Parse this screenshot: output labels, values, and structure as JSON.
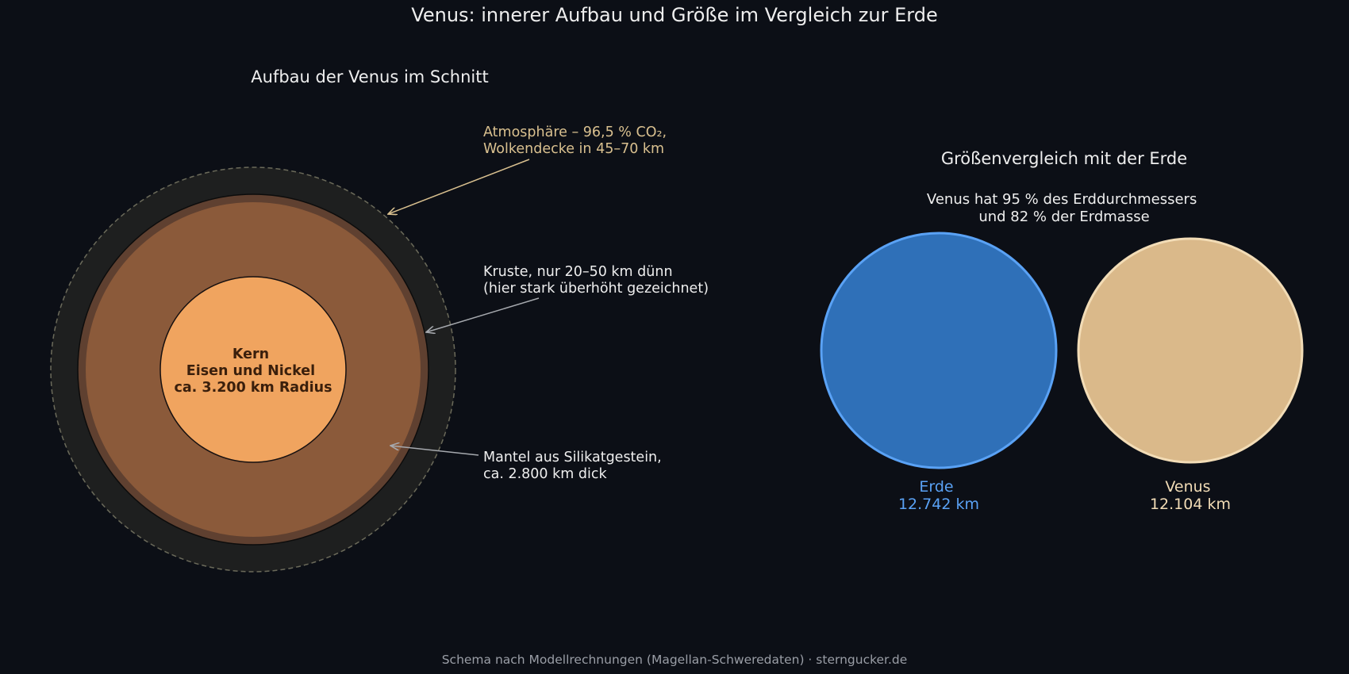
{
  "title": "Venus: innerer Aufbau und Größe im Vergleich zur Erde",
  "cross_section": {
    "heading": "Aufbau der Venus im Schnitt",
    "core_label": [
      "Kern",
      "Eisen und Nickel",
      "ca. 3.200 km Radius"
    ],
    "atmosphere_label": [
      "Atmosphäre – 96,5 % CO₂,",
      "Wolkendecke in 45–70 km"
    ],
    "crust_label": [
      "Kruste, nur 20–50 km dünn",
      "(hier stark überhöht gezeichnet)"
    ],
    "mantle_label": [
      "Mantel aus Silikatgestein,",
      "ca. 2.800 km dick"
    ]
  },
  "comparison": {
    "heading": "Größenvergleich mit der Erde",
    "subtitle": [
      "Venus hat 95 % des Erddurchmessers",
      "und 82 % der Erdmasse"
    ],
    "earth": {
      "name": "Erde",
      "diameter": "12.742 km",
      "color": "#2f70b8",
      "edge": "#5aa2f5"
    },
    "venus": {
      "name": "Venus",
      "diameter": "12.104 km",
      "color": "#dab98a",
      "edge": "#f2dcb6"
    }
  },
  "footer": "Schema nach Modellrechnungen (Magellan-Schweredaten) · sterngucker.de",
  "colors": {
    "background": "#0c0f16",
    "atmosphere": "#1e1f1f",
    "crust": "#5f4030",
    "mantle": "#8b5a3a",
    "core": "#f0a45f",
    "core_text": "#3a1f0c",
    "atmosphere_text": "#d9c08f",
    "text": "#eeeeee",
    "muted": "#9a9ea6"
  }
}
